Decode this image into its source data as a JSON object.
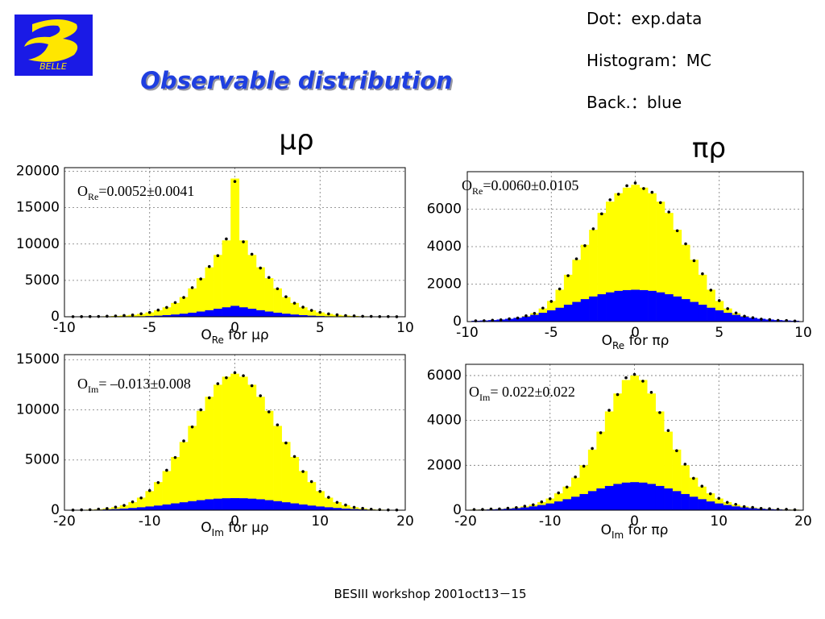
{
  "slide": {
    "logo": "BELLE",
    "title": "Observable  distribution",
    "legend": [
      "Dot：exp.data",
      "Histogram：MC",
      "Back.：blue"
    ],
    "labels": [
      "μρ",
      "πρ"
    ],
    "footer": "BESIII  workshop  2001oct13－15"
  },
  "chart_data": [
    {
      "type": "histogram",
      "grid": true,
      "annotation": {
        "main": "O",
        "sub": "Re",
        "rest": "=0.0052±0.0041"
      },
      "x_label": {
        "main": "O",
        "sub": "Re",
        "rest": " for μρ"
      },
      "xlim": [
        -10,
        10
      ],
      "xticks": [
        -10,
        -5,
        0,
        5,
        10
      ],
      "ylim": [
        0,
        20500
      ],
      "yticks": [
        0,
        5000,
        10000,
        15000,
        20000
      ],
      "bins": [
        -9.75,
        -9.25,
        -8.75,
        -8.25,
        -7.75,
        -7.25,
        -6.75,
        -6.25,
        -5.75,
        -5.25,
        -4.75,
        -4.25,
        -3.75,
        -3.25,
        -2.75,
        -2.25,
        -1.75,
        -1.25,
        -0.75,
        -0.25,
        0.25,
        0.75,
        1.25,
        1.75,
        2.25,
        2.75,
        3.25,
        3.75,
        4.25,
        4.75,
        5.25,
        5.75,
        6.25,
        6.75,
        7.25,
        7.75,
        8.25,
        8.75,
        9.25,
        9.75
      ],
      "series": [
        {
          "color": "#ffff00",
          "marker": "bar",
          "values": [
            12,
            20,
            30,
            45,
            70,
            110,
            170,
            260,
            400,
            600,
            900,
            1300,
            1900,
            2700,
            3900,
            5300,
            6800,
            8500,
            10500,
            19000,
            10500,
            8500,
            6800,
            5300,
            3900,
            2700,
            1900,
            1300,
            900,
            600,
            400,
            260,
            170,
            110,
            70,
            45,
            30,
            20,
            12
          ]
        },
        {
          "color": "#0000ff",
          "marker": "bar",
          "values": [
            1,
            2,
            4,
            6,
            10,
            15,
            25,
            40,
            65,
            100,
            150,
            220,
            310,
            420,
            560,
            720,
            900,
            1100,
            1300,
            1500,
            1300,
            1100,
            900,
            720,
            560,
            420,
            310,
            220,
            150,
            100,
            65,
            40,
            25,
            15,
            10,
            6,
            4,
            2,
            1
          ]
        },
        {
          "color": "#000000",
          "marker": "dot",
          "values": [
            14,
            18,
            33,
            40,
            75,
            105,
            180,
            250,
            410,
            590,
            920,
            1280,
            1950,
            2650,
            4000,
            5200,
            6900,
            8400,
            10700,
            18600,
            10300,
            8600,
            6700,
            5400,
            3850,
            2750,
            1870,
            1320,
            880,
            610,
            390,
            270,
            160,
            115,
            65,
            50,
            28,
            22,
            10
          ]
        }
      ]
    },
    {
      "type": "histogram",
      "grid": true,
      "annotation": {
        "main": "O",
        "sub": "Im",
        "rest": "= –0.013±0.008"
      },
      "x_label": {
        "main": "O",
        "sub": "Im",
        "rest": " for μρ"
      },
      "xlim": [
        -20,
        20
      ],
      "xticks": [
        -20,
        -10,
        0,
        10,
        20
      ],
      "ylim": [
        0,
        15500
      ],
      "yticks": [
        0,
        5000,
        10000,
        15000
      ],
      "bins": [
        -19.5,
        -18.5,
        -17.5,
        -16.5,
        -15.5,
        -14.5,
        -13.5,
        -12.5,
        -11.5,
        -10.5,
        -9.5,
        -8.5,
        -7.5,
        -6.5,
        -5.5,
        -4.5,
        -3.5,
        -2.5,
        -1.5,
        -0.5,
        0.5,
        1.5,
        2.5,
        3.5,
        4.5,
        5.5,
        6.5,
        7.5,
        8.5,
        9.5,
        10.5,
        11.5,
        12.5,
        13.5,
        14.5,
        15.5,
        16.5,
        17.5,
        18.5,
        19.5
      ],
      "series": [
        {
          "color": "#ffff00",
          "marker": "bar",
          "values": [
            15,
            30,
            55,
            100,
            180,
            300,
            500,
            800,
            1250,
            1900,
            2800,
            3900,
            5300,
            6800,
            8400,
            9900,
            11300,
            12500,
            13300,
            13600,
            13300,
            12500,
            11300,
            9900,
            8400,
            6800,
            5300,
            3900,
            2800,
            1900,
            1250,
            800,
            500,
            300,
            180,
            100,
            55,
            30,
            15
          ]
        },
        {
          "color": "#0000ff",
          "marker": "bar",
          "values": [
            14,
            22,
            35,
            55,
            80,
            115,
            160,
            220,
            290,
            370,
            460,
            570,
            680,
            790,
            900,
            1000,
            1090,
            1150,
            1190,
            1200,
            1190,
            1150,
            1090,
            1000,
            900,
            790,
            680,
            570,
            460,
            370,
            290,
            220,
            160,
            115,
            80,
            55,
            35,
            22,
            14
          ]
        },
        {
          "color": "#000000",
          "marker": "dot",
          "values": [
            12,
            34,
            50,
            110,
            170,
            310,
            480,
            830,
            1220,
            1950,
            2750,
            3980,
            5250,
            6900,
            8300,
            10000,
            11200,
            12600,
            13200,
            13700,
            13400,
            12400,
            11400,
            9800,
            8500,
            6700,
            5350,
            3850,
            2850,
            1870,
            1280,
            780,
            520,
            290,
            190,
            95,
            60,
            27,
            18
          ]
        }
      ]
    },
    {
      "type": "histogram",
      "grid": true,
      "annotation": {
        "main": "O",
        "sub": "Re",
        "rest": "=0.0060±0.0105"
      },
      "x_label": {
        "main": "O",
        "sub": "Re",
        "rest": " for πρ"
      },
      "xlim": [
        -10,
        10
      ],
      "xticks": [
        -10,
        -5,
        0,
        5,
        10
      ],
      "ylim": [
        0,
        8000
      ],
      "yticks": [
        0,
        2000,
        4000,
        6000
      ],
      "bins": [
        -9.75,
        -9.25,
        -8.75,
        -8.25,
        -7.75,
        -7.25,
        -6.75,
        -6.25,
        -5.75,
        -5.25,
        -4.75,
        -4.25,
        -3.75,
        -3.25,
        -2.75,
        -2.25,
        -1.75,
        -1.25,
        -0.75,
        -0.25,
        0.25,
        0.75,
        1.25,
        1.75,
        2.25,
        2.75,
        3.25,
        3.75,
        4.25,
        4.75,
        5.25,
        5.75,
        6.25,
        6.75,
        7.25,
        7.75,
        8.25,
        8.75,
        9.25,
        9.75
      ],
      "series": [
        {
          "color": "#ffff00",
          "marker": "bar",
          "values": [
            35,
            50,
            70,
            100,
            140,
            200,
            300,
            450,
            700,
            1100,
            1700,
            2500,
            3300,
            4100,
            4900,
            5800,
            6400,
            6850,
            7150,
            7300,
            7150,
            6850,
            6400,
            5800,
            4900,
            4100,
            3300,
            2500,
            1700,
            1100,
            700,
            450,
            300,
            200,
            140,
            100,
            70,
            50,
            35
          ]
        },
        {
          "color": "#0000ff",
          "marker": "bar",
          "values": [
            45,
            60,
            80,
            110,
            150,
            200,
            270,
            360,
            470,
            600,
            740,
            900,
            1050,
            1200,
            1340,
            1460,
            1560,
            1640,
            1680,
            1700,
            1680,
            1640,
            1560,
            1460,
            1340,
            1200,
            1050,
            900,
            740,
            600,
            470,
            360,
            270,
            200,
            150,
            110,
            80,
            60,
            45
          ]
        },
        {
          "color": "#000000",
          "marker": "dot",
          "values": [
            40,
            45,
            75,
            95,
            150,
            190,
            310,
            440,
            720,
            1080,
            1740,
            2450,
            3350,
            4050,
            4950,
            5750,
            6500,
            6800,
            7250,
            7400,
            7100,
            6900,
            6350,
            5850,
            4850,
            4150,
            3250,
            2550,
            1680,
            1120,
            690,
            460,
            290,
            210,
            130,
            105,
            65,
            55,
            30
          ]
        }
      ]
    },
    {
      "type": "histogram",
      "grid": true,
      "annotation": {
        "main": "O",
        "sub": "Im",
        "rest": "= 0.022±0.022"
      },
      "x_label": {
        "main": "O",
        "sub": "Im",
        "rest": " for πρ"
      },
      "xlim": [
        -20,
        20
      ],
      "xticks": [
        -20,
        -10,
        0,
        10,
        20
      ],
      "ylim": [
        0,
        6500
      ],
      "yticks": [
        0,
        2000,
        4000,
        6000
      ],
      "bins": [
        -19.5,
        -18.5,
        -17.5,
        -16.5,
        -15.5,
        -14.5,
        -13.5,
        -12.5,
        -11.5,
        -10.5,
        -9.5,
        -8.5,
        -7.5,
        -6.5,
        -5.5,
        -4.5,
        -3.5,
        -2.5,
        -1.5,
        -0.5,
        0.5,
        1.5,
        2.5,
        3.5,
        4.5,
        5.5,
        6.5,
        7.5,
        8.5,
        9.5,
        10.5,
        11.5,
        12.5,
        13.5,
        14.5,
        15.5,
        16.5,
        17.5,
        18.5,
        19.5
      ],
      "series": [
        {
          "color": "#ffff00",
          "marker": "bar",
          "values": [
            25,
            35,
            45,
            60,
            85,
            120,
            170,
            250,
            360,
            520,
            750,
            1050,
            1450,
            2000,
            2700,
            3500,
            4400,
            5200,
            5800,
            6000,
            5800,
            5200,
            4400,
            3500,
            2700,
            2000,
            1450,
            1050,
            750,
            520,
            360,
            250,
            170,
            120,
            85,
            60,
            45,
            35,
            25
          ]
        },
        {
          "color": "#0000ff",
          "marker": "bar",
          "values": [
            20,
            26,
            35,
            48,
            65,
            90,
            125,
            170,
            230,
            300,
            390,
            490,
            600,
            720,
            850,
            970,
            1080,
            1170,
            1230,
            1250,
            1230,
            1170,
            1080,
            970,
            850,
            720,
            600,
            490,
            390,
            300,
            230,
            170,
            125,
            90,
            65,
            48,
            35,
            26,
            20
          ]
        },
        {
          "color": "#000000",
          "marker": "dot",
          "values": [
            30,
            32,
            50,
            55,
            90,
            115,
            180,
            240,
            370,
            510,
            770,
            1030,
            1480,
            1960,
            2750,
            3450,
            4450,
            5150,
            5900,
            6050,
            5750,
            5250,
            4350,
            3550,
            2650,
            2050,
            1420,
            1070,
            730,
            530,
            350,
            260,
            160,
            125,
            80,
            65,
            40,
            38,
            22
          ]
        }
      ]
    }
  ]
}
